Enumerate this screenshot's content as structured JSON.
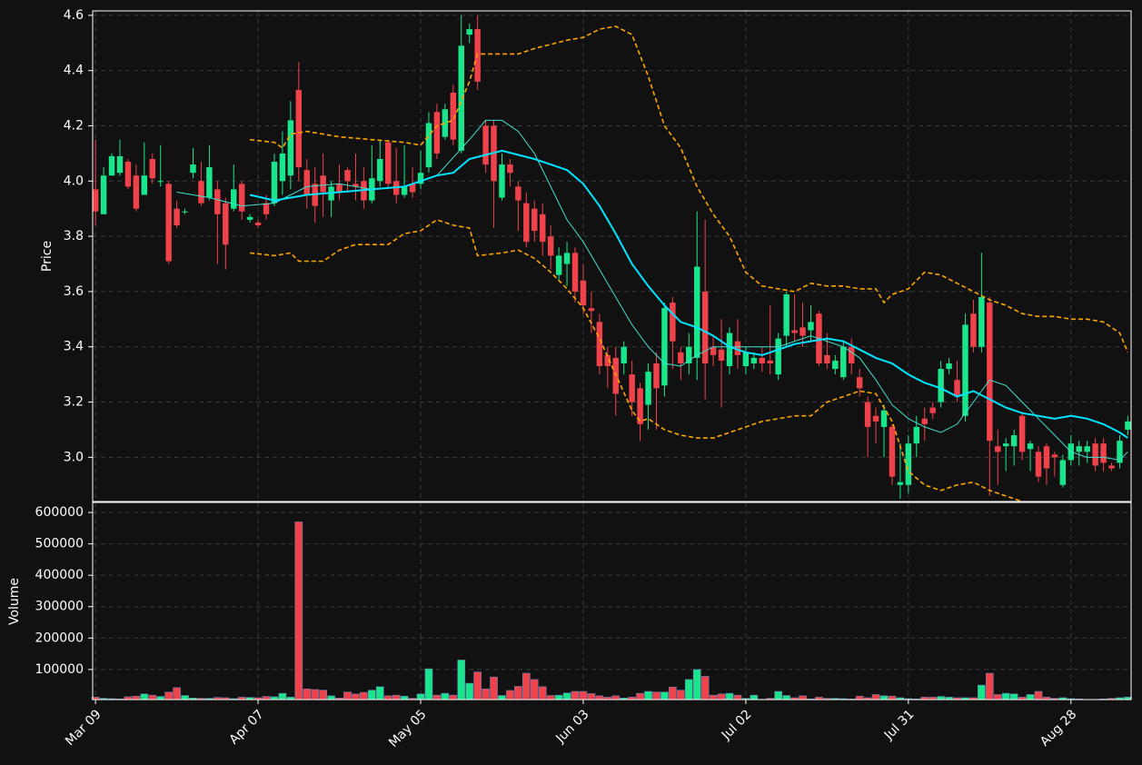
{
  "chart_data": {
    "type": "candlestick",
    "ylabel": "Price",
    "volume_label": "Volume",
    "up_color": "#19e68c",
    "down_color": "#f0424a",
    "grid": true,
    "xlim": [
      -0.35,
      127.4
    ],
    "xticks": [
      {
        "value": 0,
        "label": "Mar 09"
      },
      {
        "value": 20,
        "label": "Apr 07"
      },
      {
        "value": 40,
        "label": "May 05"
      },
      {
        "value": 60,
        "label": "Jun 03"
      },
      {
        "value": 80,
        "label": "Jul 02"
      },
      {
        "value": 100,
        "label": "Jul 31"
      },
      {
        "value": 120,
        "label": "Aug 28"
      }
    ],
    "ylim": [
      2.84,
      4.616
    ],
    "yticks": [
      {
        "value": 3.0,
        "label": "3.0"
      },
      {
        "value": 3.2,
        "label": "3.2"
      },
      {
        "value": 3.4,
        "label": "3.4"
      },
      {
        "value": 3.6,
        "label": "3.6"
      },
      {
        "value": 3.8,
        "label": "3.8"
      },
      {
        "value": 4.0,
        "label": "4.0"
      },
      {
        "value": 4.2,
        "label": "4.2"
      },
      {
        "value": 4.4,
        "label": "4.4"
      },
      {
        "value": 4.6,
        "label": "4.6"
      }
    ],
    "volume_ylim": [
      4000,
      632000
    ],
    "volume_yticks": [
      100000,
      200000,
      300000,
      400000,
      500000,
      600000
    ],
    "open": [
      3.97,
      3.88,
      4.02,
      4.03,
      4.07,
      4.02,
      3.95,
      4.08,
      4.0,
      3.99,
      3.9,
      3.89,
      4.03,
      4.0,
      3.94,
      3.97,
      3.92,
      3.9,
      3.99,
      3.86,
      3.85,
      3.92,
      3.92,
      4.0,
      4.02,
      4.33,
      4.04,
      3.99,
      4.02,
      3.93,
      3.99,
      4.04,
      3.99,
      4.0,
      3.93,
      4.0,
      4.14,
      4.0,
      3.95,
      3.99,
      3.99,
      4.05,
      4.25,
      4.16,
      4.32,
      4.11,
      4.53,
      4.55,
      4.2,
      4.2,
      3.94,
      4.06,
      3.98,
      3.92,
      3.9,
      3.88,
      3.8,
      3.66,
      3.7,
      3.74,
      3.64,
      3.54,
      3.49,
      3.37,
      3.36,
      3.34,
      3.3,
      3.25,
      3.19,
      3.34,
      3.26,
      3.56,
      3.38,
      3.34,
      3.36,
      3.6,
      3.4,
      3.39,
      3.33,
      3.42,
      3.33,
      3.34,
      3.36,
      3.35,
      3.3,
      3.44,
      3.46,
      3.47,
      3.46,
      3.52,
      3.37,
      3.32,
      3.29,
      3.4,
      3.29,
      3.2,
      3.15,
      3.11,
      3.11,
      2.9,
      2.9,
      3.05,
      3.14,
      3.18,
      3.2,
      3.32,
      3.28,
      3.15,
      3.52,
      3.4,
      3.56,
      3.04,
      3.04,
      3.04,
      3.15,
      3.03,
      3.02,
      3.04,
      3.01,
      2.9,
      2.99,
      3.02,
      3.02,
      3.05,
      3.05,
      2.97,
      2.98,
      3.1
    ],
    "high": [
      4.15,
      4.05,
      4.1,
      4.15,
      4.08,
      4.06,
      4.14,
      4.1,
      4.13,
      4.0,
      3.93,
      3.9,
      4.12,
      4.07,
      4.13,
      4.0,
      3.94,
      4.06,
      4.0,
      3.88,
      3.86,
      3.95,
      4.1,
      4.18,
      4.29,
      4.43,
      4.08,
      4.05,
      4.1,
      4.0,
      4.06,
      4.05,
      4.1,
      4.05,
      4.13,
      4.15,
      4.15,
      4.12,
      4.13,
      4.05,
      4.11,
      4.25,
      4.28,
      4.28,
      4.35,
      4.6,
      4.57,
      4.6,
      4.22,
      4.22,
      4.1,
      4.08,
      4.0,
      3.96,
      3.93,
      3.92,
      3.84,
      3.76,
      3.78,
      3.76,
      3.7,
      3.6,
      3.52,
      3.4,
      3.4,
      3.42,
      3.35,
      3.27,
      3.34,
      3.38,
      3.56,
      3.58,
      3.4,
      3.45,
      3.89,
      3.86,
      3.44,
      3.5,
      3.47,
      3.5,
      3.4,
      3.38,
      3.4,
      3.55,
      3.45,
      3.6,
      3.59,
      3.56,
      3.55,
      3.53,
      3.45,
      3.37,
      3.42,
      3.43,
      3.32,
      3.22,
      3.18,
      3.19,
      3.12,
      3.05,
      3.08,
      3.15,
      3.18,
      3.2,
      3.35,
      3.36,
      3.35,
      3.52,
      3.57,
      3.74,
      3.58,
      3.1,
      3.07,
      3.1,
      3.16,
      3.06,
      3.04,
      3.05,
      3.02,
      3.01,
      3.08,
      3.06,
      3.06,
      3.07,
      3.07,
      2.98,
      3.08,
      3.15
    ],
    "low": [
      3.84,
      3.88,
      4.02,
      4.02,
      3.97,
      3.89,
      3.95,
      3.99,
      3.98,
      3.7,
      3.83,
      3.88,
      4.01,
      3.91,
      3.93,
      3.7,
      3.68,
      3.89,
      3.86,
      3.85,
      3.83,
      3.86,
      3.91,
      3.95,
      3.97,
      4.0,
      3.9,
      3.85,
      3.87,
      3.87,
      3.93,
      3.96,
      3.93,
      3.9,
      3.92,
      3.98,
      3.97,
      3.92,
      3.94,
      3.94,
      3.97,
      4.03,
      4.08,
      4.15,
      4.13,
      4.1,
      4.5,
      4.33,
      4.03,
      3.83,
      3.93,
      3.98,
      3.82,
      3.76,
      3.78,
      3.73,
      3.68,
      3.64,
      3.62,
      3.56,
      3.52,
      3.45,
      3.3,
      3.25,
      3.15,
      3.3,
      3.15,
      3.06,
      3.1,
      3.1,
      3.22,
      3.32,
      3.28,
      3.3,
      3.28,
      3.21,
      3.33,
      3.18,
      3.3,
      3.32,
      3.3,
      3.32,
      3.31,
      3.3,
      3.28,
      3.4,
      3.42,
      3.4,
      3.42,
      3.33,
      3.32,
      3.3,
      3.28,
      3.3,
      3.22,
      3.0,
      3.05,
      3.0,
      2.9,
      2.85,
      2.87,
      3.0,
      3.06,
      3.14,
      3.18,
      3.3,
      3.2,
      3.13,
      3.38,
      3.38,
      2.86,
      2.9,
      2.95,
      2.97,
      2.99,
      2.95,
      2.91,
      2.9,
      2.93,
      2.89,
      2.97,
      2.97,
      2.98,
      2.95,
      2.95,
      2.95,
      2.96,
      3.08
    ],
    "close": [
      3.89,
      4.02,
      4.09,
      4.09,
      3.98,
      3.9,
      4.02,
      4.01,
      4.0,
      3.71,
      3.84,
      3.89,
      4.06,
      3.92,
      4.05,
      3.88,
      3.77,
      3.97,
      3.89,
      3.87,
      3.84,
      3.88,
      4.07,
      4.1,
      4.22,
      4.05,
      3.95,
      3.91,
      3.96,
      3.98,
      3.96,
      4.0,
      3.98,
      3.93,
      4.01,
      4.08,
      3.99,
      3.95,
      3.98,
      3.96,
      4.03,
      4.21,
      4.1,
      4.26,
      4.15,
      4.49,
      4.55,
      4.36,
      4.06,
      4.0,
      4.06,
      4.03,
      3.93,
      3.78,
      3.82,
      3.78,
      3.73,
      3.73,
      3.74,
      3.6,
      3.55,
      3.53,
      3.33,
      3.33,
      3.23,
      3.4,
      3.2,
      3.12,
      3.31,
      3.25,
      3.54,
      3.42,
      3.34,
      3.4,
      3.69,
      3.34,
      3.37,
      3.35,
      3.45,
      3.37,
      3.38,
      3.36,
      3.34,
      3.34,
      3.43,
      3.59,
      3.45,
      3.44,
      3.49,
      3.34,
      3.34,
      3.35,
      3.4,
      3.34,
      3.25,
      3.11,
      3.13,
      3.17,
      2.93,
      2.91,
      3.05,
      3.11,
      3.12,
      3.16,
      3.32,
      3.34,
      3.22,
      3.48,
      3.4,
      3.58,
      3.06,
      3.02,
      3.05,
      3.08,
      3.02,
      3.05,
      2.93,
      2.96,
      3.0,
      2.99,
      3.05,
      3.04,
      3.04,
      2.97,
      2.98,
      2.96,
      3.06,
      3.13
    ],
    "volume": [
      12000,
      8000,
      7000,
      6000,
      13000,
      15000,
      22000,
      18000,
      14000,
      28000,
      42000,
      17000,
      9000,
      8000,
      8000,
      11000,
      10000,
      7000,
      12000,
      11000,
      10000,
      14000,
      13000,
      24000,
      12000,
      570000,
      38000,
      36000,
      34000,
      16000,
      9000,
      28000,
      22000,
      27000,
      34000,
      45000,
      16000,
      18000,
      15000,
      8000,
      22000,
      102000,
      18000,
      24000,
      18000,
      130000,
      56000,
      92000,
      38000,
      76000,
      17000,
      33000,
      46000,
      88000,
      68000,
      45000,
      17000,
      18000,
      25000,
      30000,
      30000,
      23000,
      16000,
      12000,
      16000,
      9000,
      12000,
      24000,
      30000,
      28000,
      28000,
      44000,
      34000,
      68000,
      100000,
      78000,
      18000,
      22000,
      24000,
      18000,
      8000,
      18000,
      5000,
      8000,
      30000,
      17000,
      10000,
      16000,
      6000,
      12000,
      8000,
      8000,
      7000,
      6000,
      15000,
      10000,
      20000,
      16000,
      15000,
      10000,
      7000,
      6000,
      12000,
      12000,
      14000,
      12000,
      10000,
      10000,
      10000,
      50000,
      88000,
      20000,
      24000,
      22000,
      12000,
      20000,
      30000,
      12000,
      8000,
      10000,
      7000,
      6000,
      4500,
      4200,
      6000,
      8000,
      10000,
      12000
    ],
    "overlays": [
      {
        "color": "#40e0d0",
        "width": 1,
        "dashed": false,
        "x": [
          10,
          14,
          18,
          22,
          26,
          30,
          34,
          38,
          42,
          46,
          48,
          50,
          52,
          54,
          56,
          58,
          60,
          62,
          64,
          66,
          68,
          70,
          72,
          74,
          76,
          80,
          84,
          88,
          90,
          92,
          94,
          96,
          98,
          100,
          102,
          104,
          106,
          108,
          110,
          112,
          114,
          116,
          118,
          120,
          122,
          124,
          126,
          127
        ],
        "values": [
          3.96,
          3.94,
          3.91,
          3.92,
          3.98,
          3.99,
          3.97,
          3.98,
          4.02,
          4.15,
          4.22,
          4.22,
          4.18,
          4.1,
          3.98,
          3.86,
          3.78,
          3.68,
          3.58,
          3.48,
          3.4,
          3.34,
          3.33,
          3.37,
          3.4,
          3.4,
          3.4,
          3.44,
          3.42,
          3.4,
          3.36,
          3.28,
          3.19,
          3.14,
          3.11,
          3.09,
          3.12,
          3.2,
          3.28,
          3.26,
          3.2,
          3.14,
          3.08,
          3.02,
          3.0,
          3.0,
          2.99,
          3.02
        ]
      },
      {
        "color": "#00e5ff",
        "width": 2,
        "dashed": false,
        "x": [
          19,
          22,
          26,
          30,
          34,
          38,
          42,
          44,
          46,
          50,
          54,
          58,
          60,
          62,
          64,
          66,
          68,
          70,
          72,
          74,
          76,
          78,
          80,
          82,
          84,
          86,
          88,
          90,
          92,
          94,
          96,
          98,
          100,
          102,
          104,
          106,
          108,
          110,
          112,
          114,
          116,
          118,
          120,
          122,
          124,
          126,
          127
        ],
        "values": [
          3.95,
          3.93,
          3.95,
          3.96,
          3.97,
          3.98,
          4.02,
          4.03,
          4.08,
          4.11,
          4.08,
          4.04,
          3.99,
          3.91,
          3.81,
          3.7,
          3.62,
          3.55,
          3.49,
          3.47,
          3.44,
          3.4,
          3.38,
          3.37,
          3.39,
          3.41,
          3.42,
          3.43,
          3.42,
          3.39,
          3.36,
          3.34,
          3.3,
          3.27,
          3.25,
          3.22,
          3.24,
          3.21,
          3.18,
          3.16,
          3.15,
          3.14,
          3.15,
          3.14,
          3.12,
          3.09,
          3.07
        ]
      },
      {
        "color": "#ffa500",
        "width": 1.6,
        "dashed": true,
        "x": [
          19,
          22,
          23,
          24,
          26,
          30,
          34,
          38,
          40,
          42,
          44,
          46,
          47,
          50,
          52,
          54,
          58,
          60,
          62,
          64,
          66,
          68,
          70,
          72,
          74,
          76,
          78,
          80,
          82,
          84,
          86,
          88,
          90,
          92,
          94,
          96,
          97,
          98,
          100,
          102,
          104,
          106,
          108,
          110,
          112,
          114,
          116,
          118,
          120,
          122,
          124,
          126,
          127
        ],
        "values": [
          4.15,
          4.14,
          4.12,
          4.17,
          4.18,
          4.16,
          4.15,
          4.14,
          4.13,
          4.2,
          4.22,
          4.36,
          4.46,
          4.46,
          4.46,
          4.48,
          4.51,
          4.52,
          4.55,
          4.56,
          4.53,
          4.38,
          4.2,
          4.12,
          3.98,
          3.88,
          3.8,
          3.67,
          3.62,
          3.61,
          3.6,
          3.63,
          3.62,
          3.62,
          3.61,
          3.61,
          3.56,
          3.59,
          3.61,
          3.67,
          3.66,
          3.63,
          3.6,
          3.57,
          3.55,
          3.52,
          3.51,
          3.51,
          3.5,
          3.5,
          3.49,
          3.45,
          3.38
        ]
      },
      {
        "color": "#ffa500",
        "width": 1.6,
        "dashed": true,
        "x": [
          19,
          22,
          24,
          25,
          28,
          30,
          32,
          36,
          38,
          40,
          42,
          44,
          46,
          47,
          50,
          52,
          54,
          56,
          58,
          60,
          62,
          64,
          66,
          67,
          68,
          70,
          72,
          74,
          76,
          78,
          80,
          82,
          84,
          86,
          88,
          90,
          92,
          94,
          96,
          98,
          100,
          102,
          104,
          106,
          108,
          110,
          112,
          114
        ],
        "values": [
          3.74,
          3.73,
          3.74,
          3.71,
          3.71,
          3.75,
          3.77,
          3.77,
          3.81,
          3.82,
          3.86,
          3.84,
          3.83,
          3.73,
          3.74,
          3.75,
          3.72,
          3.67,
          3.61,
          3.54,
          3.43,
          3.3,
          3.17,
          3.13,
          3.14,
          3.1,
          3.08,
          3.07,
          3.07,
          3.09,
          3.11,
          3.13,
          3.14,
          3.15,
          3.15,
          3.2,
          3.22,
          3.24,
          3.23,
          3.13,
          2.95,
          2.9,
          2.88,
          2.9,
          2.91,
          2.88,
          2.86,
          2.84
        ]
      }
    ]
  }
}
